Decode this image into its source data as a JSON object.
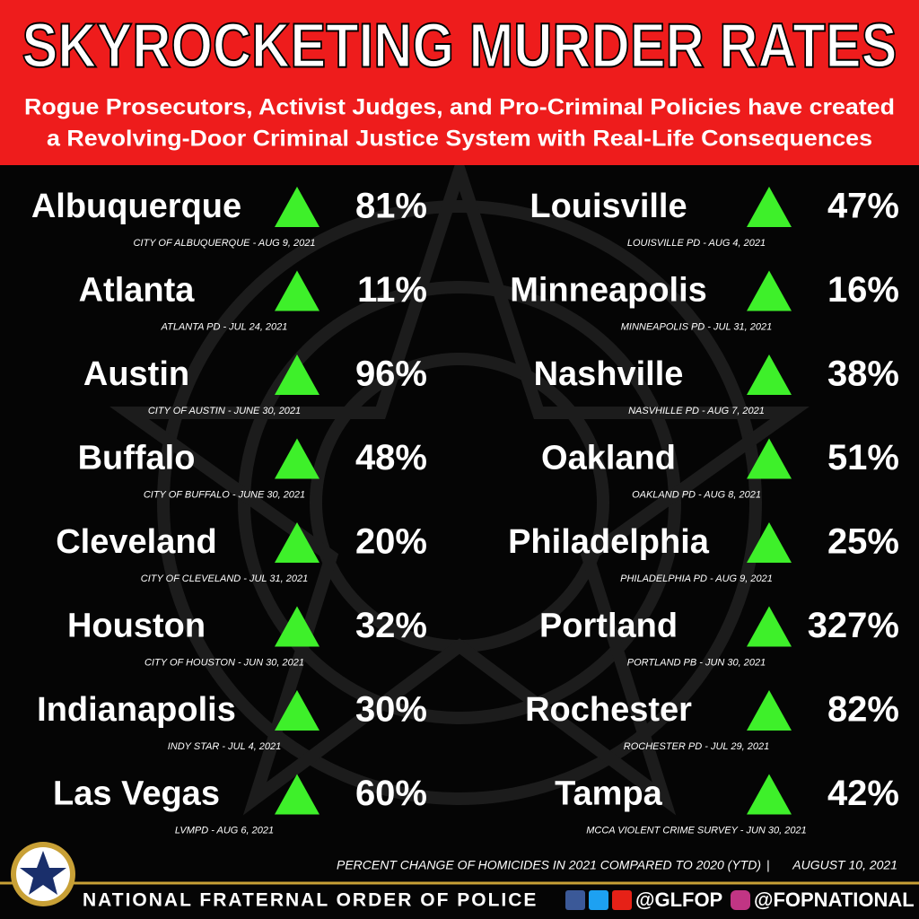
{
  "header": {
    "title": "SKYROCKETING MURDER RATES",
    "subtitle": [
      "Rogue Prosecutors, Activist Judges, and Pro-Criminal Policies have created",
      "a Revolving-Door Criminal Justice System with Real-Life Consequences"
    ]
  },
  "entries": [
    {
      "city": "Albuquerque",
      "change": "81%",
      "source": "CITY OF ALBUQUERQUE - AUG 9, 2021"
    },
    {
      "city": "Atlanta",
      "change": "11%",
      "source": "ATLANTA PD - JUL 24, 2021"
    },
    {
      "city": "Austin",
      "change": "96%",
      "source": "CITY OF AUSTIN - JUNE 30, 2021"
    },
    {
      "city": "Buffalo",
      "change": "48%",
      "source": "CITY OF BUFFALO - JUNE 30, 2021"
    },
    {
      "city": "Cleveland",
      "change": "20%",
      "source": "CITY OF CLEVELAND - JUL 31, 2021"
    },
    {
      "city": "Houston",
      "change": "32%",
      "source": "CITY OF HOUSTON - JUN 30, 2021"
    },
    {
      "city": "Indianapolis",
      "change": "30%",
      "source": "INDY STAR - JUL 4, 2021"
    },
    {
      "city": "Las Vegas",
      "change": "60%",
      "source": "LVMPD - AUG 6, 2021"
    },
    {
      "city": "Louisville",
      "change": "47%",
      "source": "LOUISVILLE PD - AUG 4, 2021"
    },
    {
      "city": "Minneapolis",
      "change": "16%",
      "source": "MINNEAPOLIS PD - JUL 31, 2021"
    },
    {
      "city": "Nashville",
      "change": "38%",
      "source": "NASVHILLE PD - AUG 7, 2021"
    },
    {
      "city": "Oakland",
      "change": "51%",
      "source": "OAKLAND PD - AUG 8, 2021"
    },
    {
      "city": "Philadelphia",
      "change": "25%",
      "source": "PHILADELPHIA PD - AUG 9, 2021"
    },
    {
      "city": "Portland",
      "change": "327%",
      "source": "PORTLAND PB - JUN 30, 2021"
    },
    {
      "city": "Rochester",
      "change": "82%",
      "source": "ROCHESTER PD - JUL 29, 2021"
    },
    {
      "city": "Tampa",
      "change": "42%",
      "source": "MCCA VIOLENT CRIME SURVEY - JUN 30, 2021"
    }
  ],
  "footer": {
    "note": "PERCENT CHANGE OF HOMICIDES IN 2021 COMPARED TO 2020 (YTD)",
    "date": "AUGUST 10, 2021",
    "organization": "NATIONAL FRATERNAL ORDER OF POLICE",
    "handles": [
      "@GLFOP",
      "@FOPNATIONAL"
    ]
  }
}
